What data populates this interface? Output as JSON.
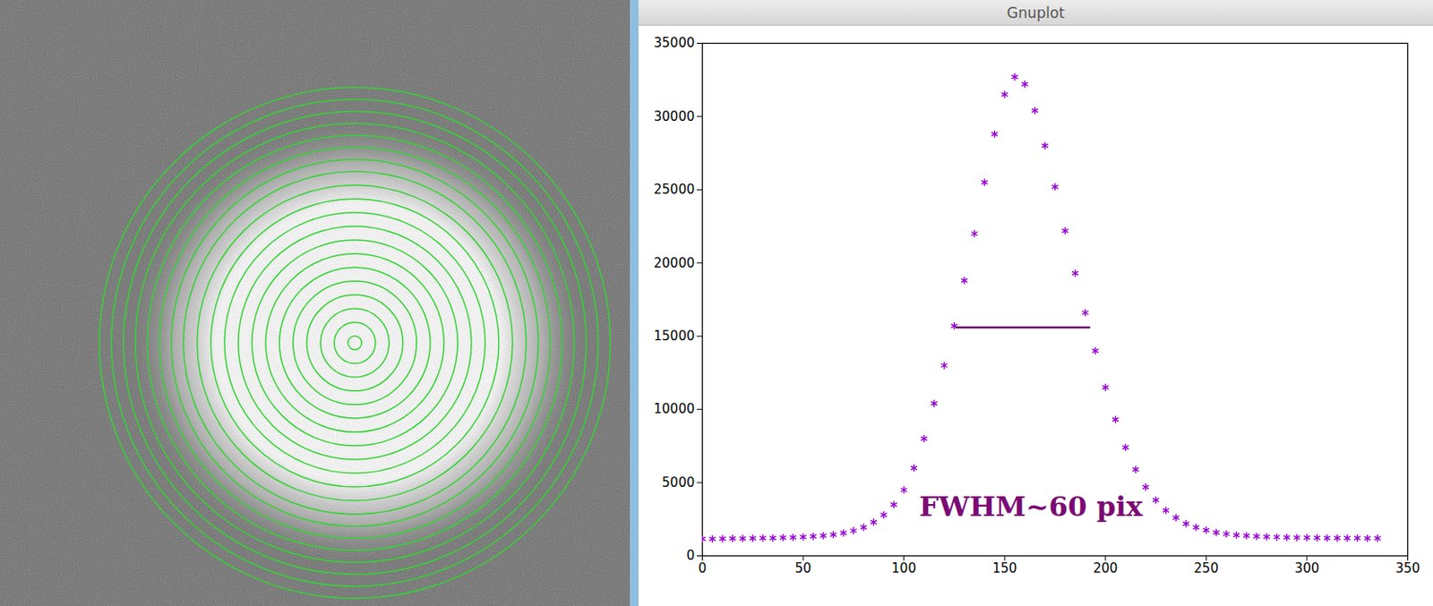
{
  "chart_data": {
    "type": "scatter",
    "title": "Gnuplot",
    "x": [
      0,
      5,
      10,
      15,
      20,
      25,
      30,
      35,
      40,
      45,
      50,
      55,
      60,
      65,
      70,
      75,
      80,
      85,
      90,
      95,
      100,
      105,
      110,
      115,
      120,
      125,
      130,
      135,
      140,
      145,
      150,
      155,
      160,
      165,
      170,
      175,
      180,
      185,
      190,
      195,
      200,
      205,
      210,
      215,
      220,
      225,
      230,
      235,
      240,
      245,
      250,
      255,
      260,
      265,
      270,
      275,
      280,
      285,
      290,
      295,
      300,
      305,
      310,
      315,
      320,
      325,
      330,
      335
    ],
    "values": [
      1150,
      1160,
      1170,
      1180,
      1190,
      1200,
      1210,
      1220,
      1240,
      1260,
      1290,
      1330,
      1380,
      1450,
      1560,
      1720,
      1950,
      2300,
      2800,
      3500,
      4500,
      6000,
      8000,
      10400,
      13000,
      15700,
      18800,
      22000,
      25500,
      28800,
      31500,
      32700,
      32200,
      30400,
      28000,
      25200,
      22200,
      19300,
      16600,
      14000,
      11500,
      9300,
      7400,
      5900,
      4700,
      3800,
      3100,
      2600,
      2200,
      1950,
      1750,
      1600,
      1500,
      1420,
      1370,
      1330,
      1300,
      1280,
      1260,
      1250,
      1240,
      1230,
      1220,
      1220,
      1210,
      1210,
      1200,
      1200
    ],
    "color": "#9400d3",
    "marker": "asterisk",
    "xlim": [
      0,
      350
    ],
    "xticks": [
      0,
      50,
      100,
      150,
      200,
      250,
      300,
      350
    ],
    "ylim": [
      0,
      35000
    ],
    "yticks": [
      0,
      5000,
      10000,
      15000,
      20000,
      25000,
      30000,
      35000
    ],
    "fwhm_line": {
      "x": [
        126,
        192
      ],
      "y": 15600,
      "color": "#6b0d6b"
    },
    "annotations": [
      {
        "text": "FWHM~60 pix",
        "x": 163,
        "y": 3300,
        "color": "#7b0a74"
      }
    ]
  }
}
